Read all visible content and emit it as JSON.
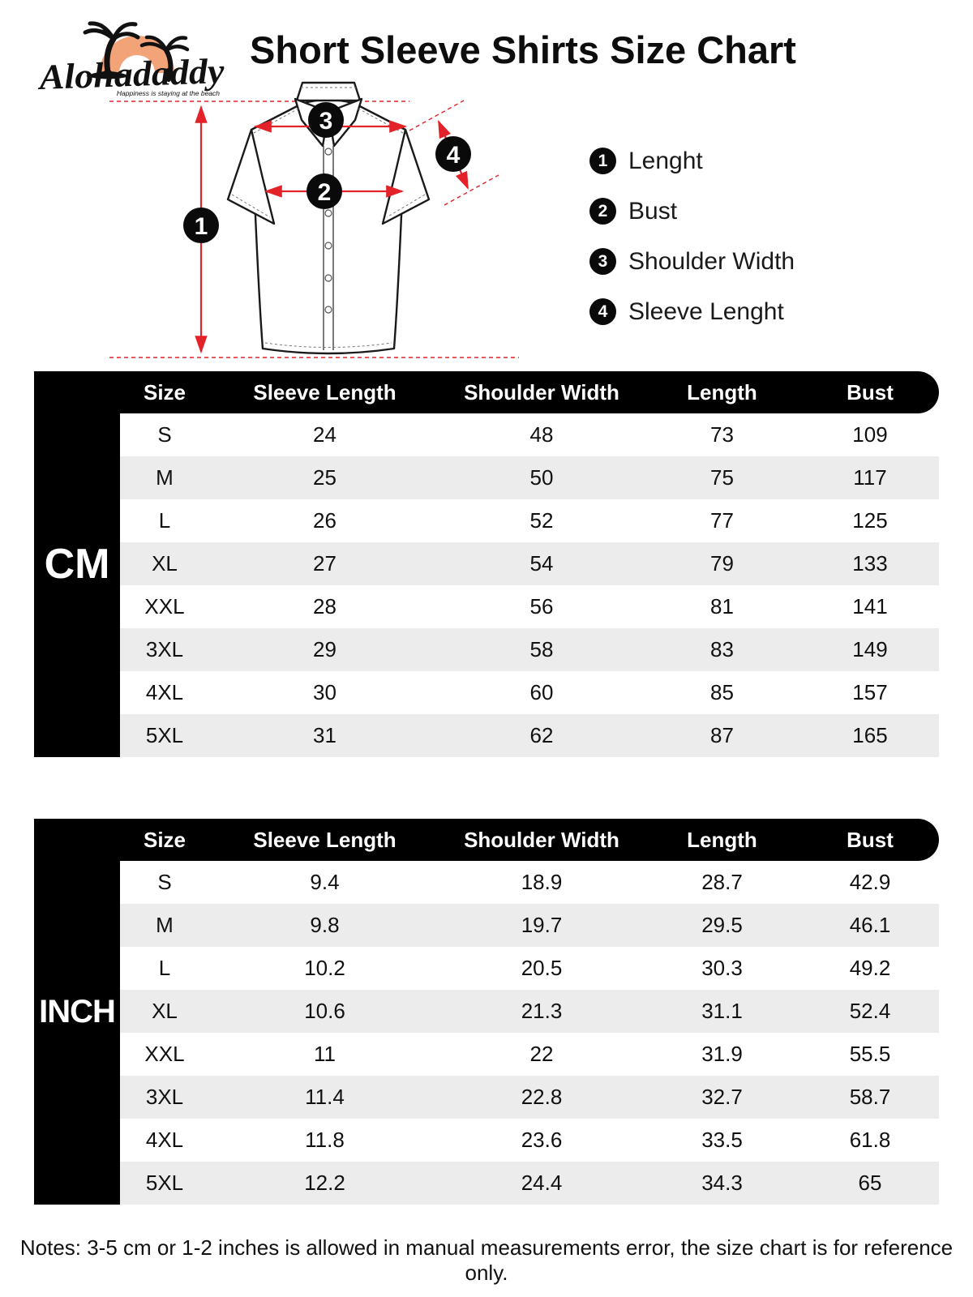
{
  "brand": {
    "name": "Alohadaddy",
    "tagline": "Happiness is staying at the beach"
  },
  "title": "Short Sleeve Shirts Size Chart",
  "legend": [
    {
      "num": "1",
      "label": "Lenght"
    },
    {
      "num": "2",
      "label": "Bust"
    },
    {
      "num": "3",
      "label": "Shoulder Width"
    },
    {
      "num": "4",
      "label": "Sleeve Lenght"
    }
  ],
  "tables": [
    {
      "unit": "CM",
      "headers": [
        "Size",
        "Sleeve Length",
        "Shoulder Width",
        "Length",
        "Bust"
      ],
      "rows": [
        [
          "S",
          "24",
          "48",
          "73",
          "109"
        ],
        [
          "M",
          "25",
          "50",
          "75",
          "117"
        ],
        [
          "L",
          "26",
          "52",
          "77",
          "125"
        ],
        [
          "XL",
          "27",
          "54",
          "79",
          "133"
        ],
        [
          "XXL",
          "28",
          "56",
          "81",
          "141"
        ],
        [
          "3XL",
          "29",
          "58",
          "83",
          "149"
        ],
        [
          "4XL",
          "30",
          "60",
          "85",
          "157"
        ],
        [
          "5XL",
          "31",
          "62",
          "87",
          "165"
        ]
      ]
    },
    {
      "unit": "INCH",
      "headers": [
        "Size",
        "Sleeve Length",
        "Shoulder Width",
        "Length",
        "Bust"
      ],
      "rows": [
        [
          "S",
          "9.4",
          "18.9",
          "28.7",
          "42.9"
        ],
        [
          "M",
          "9.8",
          "19.7",
          "29.5",
          "46.1"
        ],
        [
          "L",
          "10.2",
          "20.5",
          "30.3",
          "49.2"
        ],
        [
          "XL",
          "10.6",
          "21.3",
          "31.1",
          "52.4"
        ],
        [
          "XXL",
          "11",
          "22",
          "31.9",
          "55.5"
        ],
        [
          "3XL",
          "11.4",
          "22.8",
          "32.7",
          "58.7"
        ],
        [
          "4XL",
          "11.8",
          "23.6",
          "33.5",
          "61.8"
        ],
        [
          "5XL",
          "12.2",
          "24.4",
          "34.3",
          "65"
        ]
      ]
    }
  ],
  "notes": "Notes: 3-5 cm or 1-2 inches is allowed in manual measurements error, the size chart is for reference only.",
  "colors": {
    "accent_red": "#e3222a",
    "logo_orange": "#f2a478",
    "row_alt_gray": "#ececec",
    "table_black": "#000000"
  }
}
